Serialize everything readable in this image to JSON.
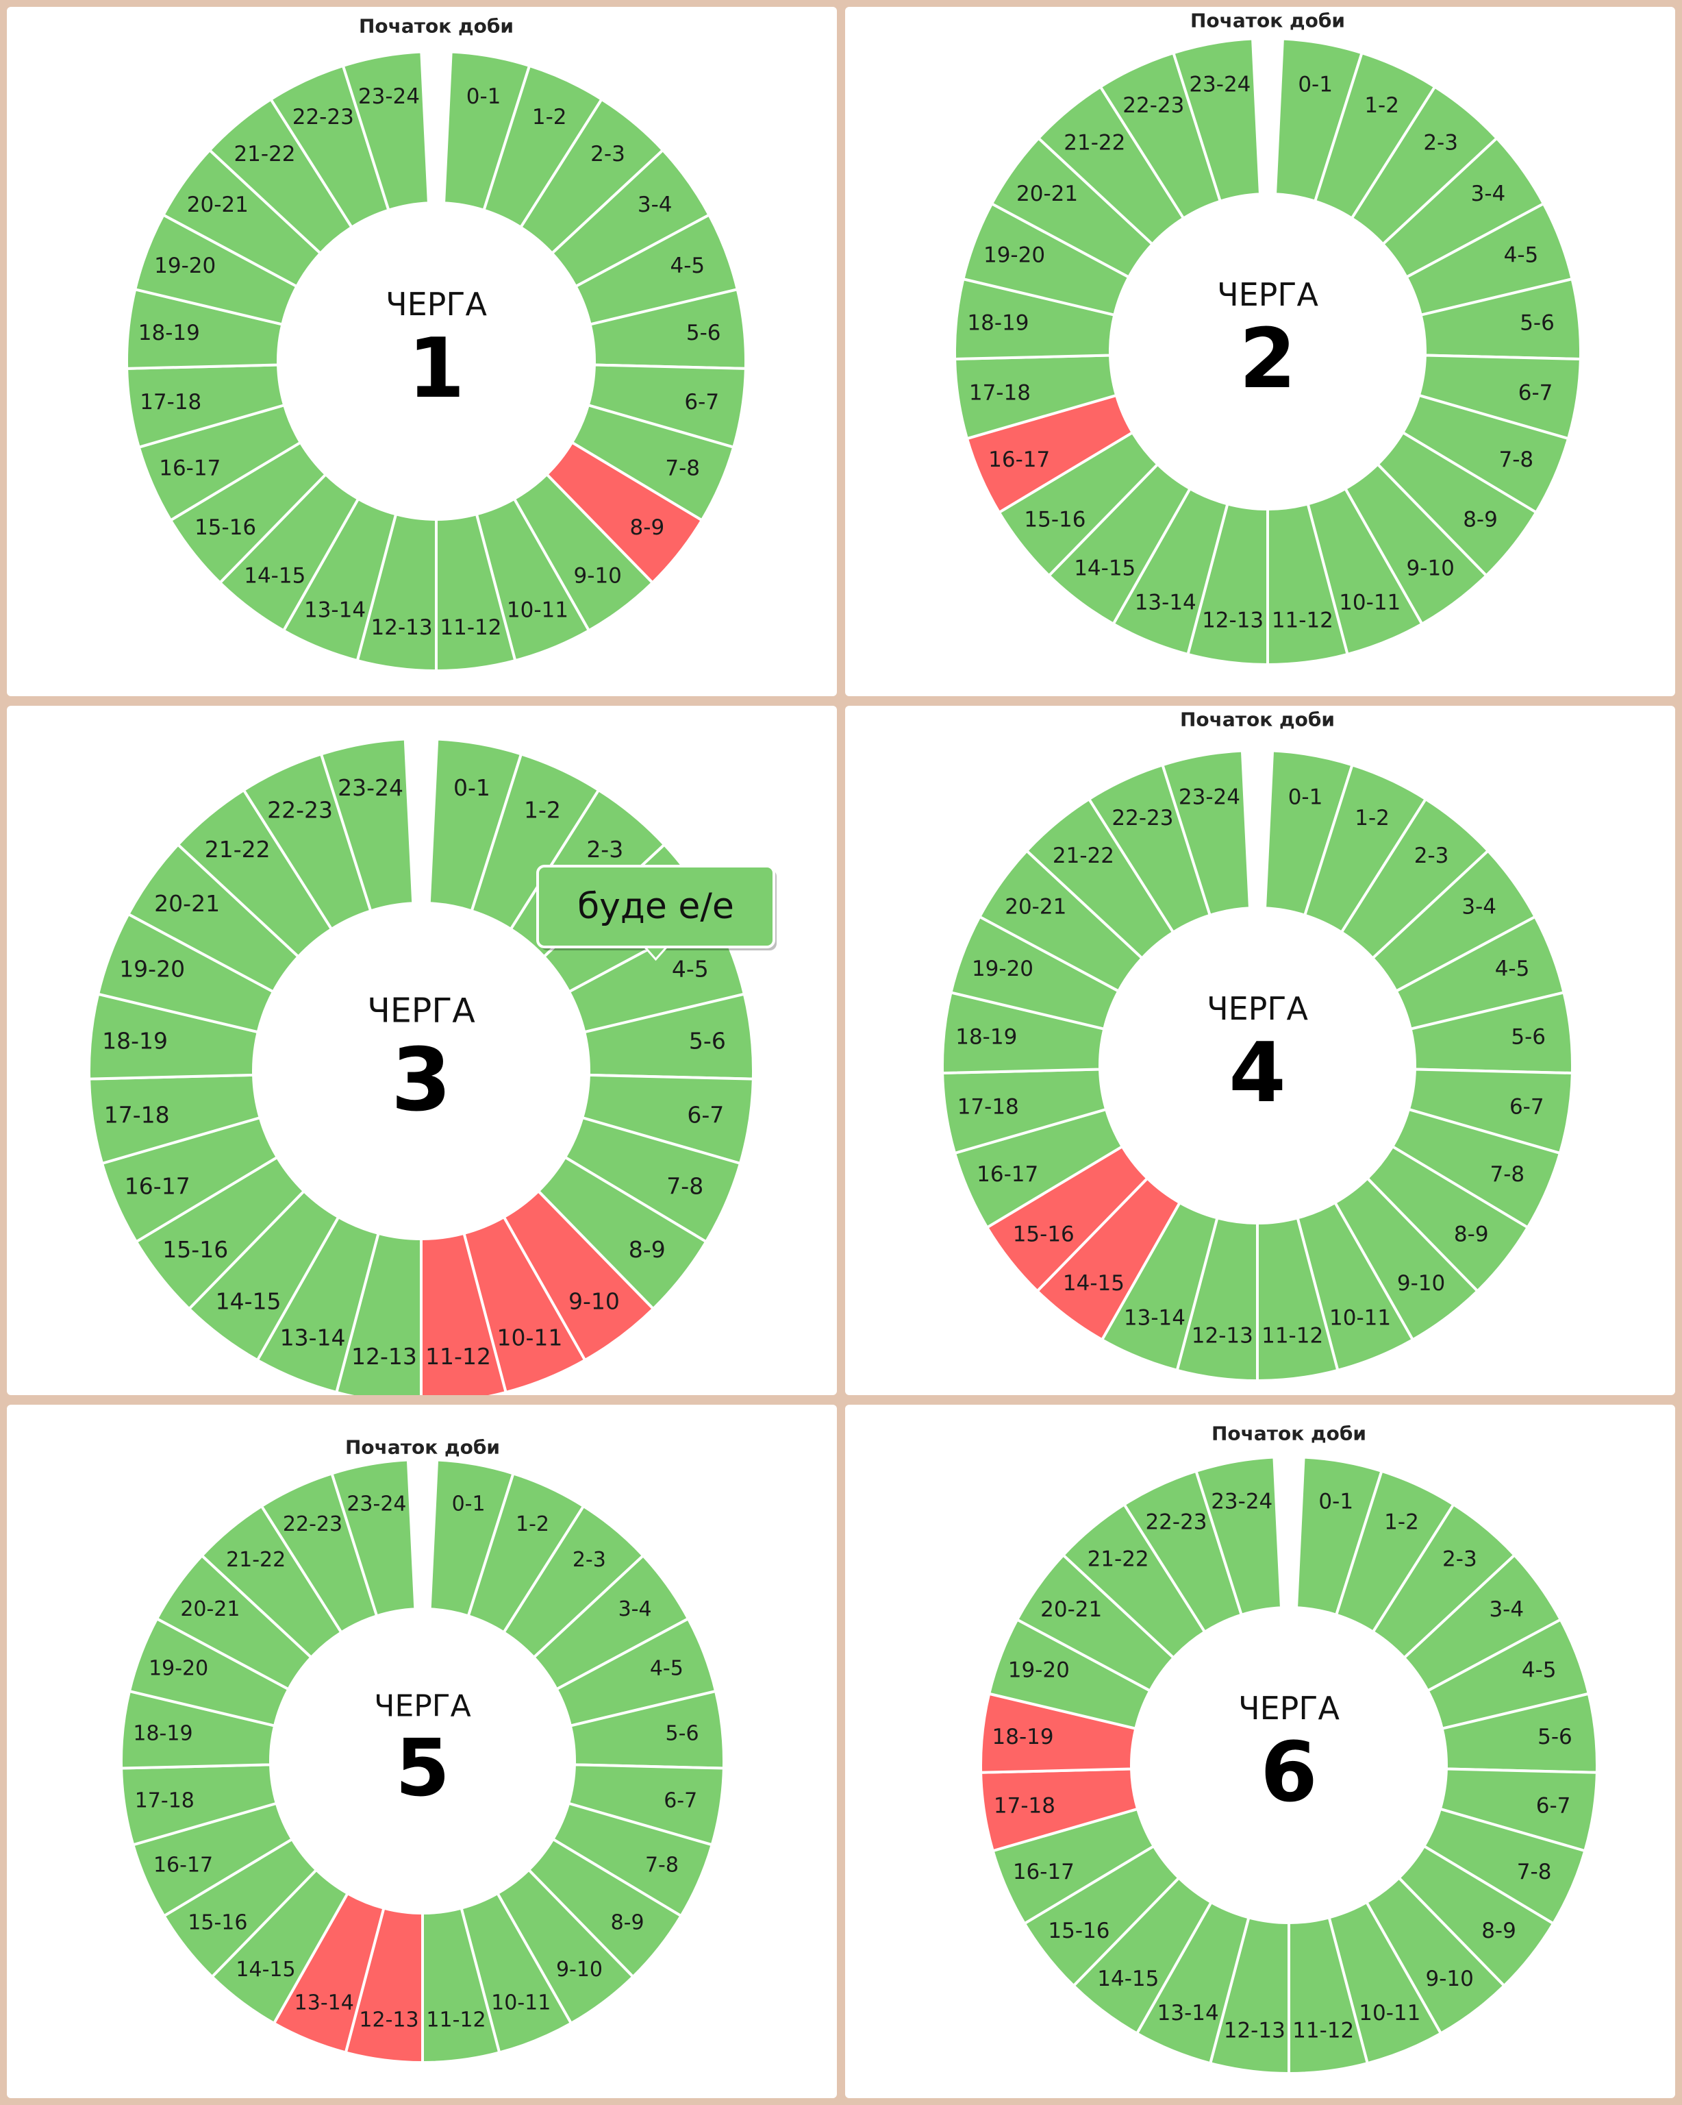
{
  "colors": {
    "on": "#7dce6f",
    "off": "#fe6565",
    "background": "#e2c4af",
    "panel": "#ffffff"
  },
  "chart_data": [
    {
      "type": "pie",
      "title": "Початок доби",
      "center_label": "ЧЕРГА",
      "center_number": "1",
      "categories": [
        "0-1",
        "1-2",
        "2-3",
        "3-4",
        "4-5",
        "5-6",
        "6-7",
        "7-8",
        "8-9",
        "9-10",
        "10-11",
        "11-12",
        "12-13",
        "13-14",
        "14-15",
        "15-16",
        "16-17",
        "17-18",
        "18-19",
        "19-20",
        "20-21",
        "21-22",
        "22-23",
        "23-24"
      ],
      "values": [
        1,
        1,
        1,
        1,
        1,
        1,
        1,
        1,
        1,
        1,
        1,
        1,
        1,
        1,
        1,
        1,
        1,
        1,
        1,
        1,
        1,
        1,
        1,
        1
      ],
      "off_hours": [
        "8-9"
      ]
    },
    {
      "type": "pie",
      "title": "Початок доби",
      "center_label": "ЧЕРГА",
      "center_number": "2",
      "categories": [
        "0-1",
        "1-2",
        "2-3",
        "3-4",
        "4-5",
        "5-6",
        "6-7",
        "7-8",
        "8-9",
        "9-10",
        "10-11",
        "11-12",
        "12-13",
        "13-14",
        "14-15",
        "15-16",
        "16-17",
        "17-18",
        "18-19",
        "19-20",
        "20-21",
        "21-22",
        "22-23",
        "23-24"
      ],
      "values": [
        1,
        1,
        1,
        1,
        1,
        1,
        1,
        1,
        1,
        1,
        1,
        1,
        1,
        1,
        1,
        1,
        1,
        1,
        1,
        1,
        1,
        1,
        1,
        1
      ],
      "off_hours": [
        "16-17"
      ]
    },
    {
      "type": "pie",
      "title": "",
      "center_label": "ЧЕРГА",
      "center_number": "3",
      "categories": [
        "0-1",
        "1-2",
        "2-3",
        "3-4",
        "4-5",
        "5-6",
        "6-7",
        "7-8",
        "8-9",
        "9-10",
        "10-11",
        "11-12",
        "12-13",
        "13-14",
        "14-15",
        "15-16",
        "16-17",
        "17-18",
        "18-19",
        "19-20",
        "20-21",
        "21-22",
        "22-23",
        "23-24"
      ],
      "values": [
        1,
        1,
        1,
        1,
        1,
        1,
        1,
        1,
        1,
        1,
        1,
        1,
        1,
        1,
        1,
        1,
        1,
        1,
        1,
        1,
        1,
        1,
        1,
        1
      ],
      "off_hours": [
        "9-10",
        "10-11",
        "11-12"
      ],
      "tooltip": "буде е/е"
    },
    {
      "type": "pie",
      "title": "Початок доби",
      "center_label": "ЧЕРГА",
      "center_number": "4",
      "categories": [
        "0-1",
        "1-2",
        "2-3",
        "3-4",
        "4-5",
        "5-6",
        "6-7",
        "7-8",
        "8-9",
        "9-10",
        "10-11",
        "11-12",
        "12-13",
        "13-14",
        "14-15",
        "15-16",
        "16-17",
        "17-18",
        "18-19",
        "19-20",
        "20-21",
        "21-22",
        "22-23",
        "23-24"
      ],
      "values": [
        1,
        1,
        1,
        1,
        1,
        1,
        1,
        1,
        1,
        1,
        1,
        1,
        1,
        1,
        1,
        1,
        1,
        1,
        1,
        1,
        1,
        1,
        1,
        1
      ],
      "off_hours": [
        "14-15",
        "15-16"
      ]
    },
    {
      "type": "pie",
      "title": "Початок доби",
      "center_label": "ЧЕРГА",
      "center_number": "5",
      "categories": [
        "0-1",
        "1-2",
        "2-3",
        "3-4",
        "4-5",
        "5-6",
        "6-7",
        "7-8",
        "8-9",
        "9-10",
        "10-11",
        "11-12",
        "12-13",
        "13-14",
        "14-15",
        "15-16",
        "16-17",
        "17-18",
        "18-19",
        "19-20",
        "20-21",
        "21-22",
        "22-23",
        "23-24"
      ],
      "values": [
        1,
        1,
        1,
        1,
        1,
        1,
        1,
        1,
        1,
        1,
        1,
        1,
        1,
        1,
        1,
        1,
        1,
        1,
        1,
        1,
        1,
        1,
        1,
        1
      ],
      "off_hours": [
        "12-13",
        "13-14"
      ]
    },
    {
      "type": "pie",
      "title": "Початок доби",
      "center_label": "ЧЕРГА",
      "center_number": "6",
      "categories": [
        "0-1",
        "1-2",
        "2-3",
        "3-4",
        "4-5",
        "5-6",
        "6-7",
        "7-8",
        "8-9",
        "9-10",
        "10-11",
        "11-12",
        "12-13",
        "13-14",
        "14-15",
        "15-16",
        "16-17",
        "17-18",
        "18-19",
        "19-20",
        "20-21",
        "21-22",
        "22-23",
        "23-24"
      ],
      "values": [
        1,
        1,
        1,
        1,
        1,
        1,
        1,
        1,
        1,
        1,
        1,
        1,
        1,
        1,
        1,
        1,
        1,
        1,
        1,
        1,
        1,
        1,
        1,
        1
      ],
      "off_hours": [
        "17-18",
        "18-19"
      ]
    }
  ]
}
